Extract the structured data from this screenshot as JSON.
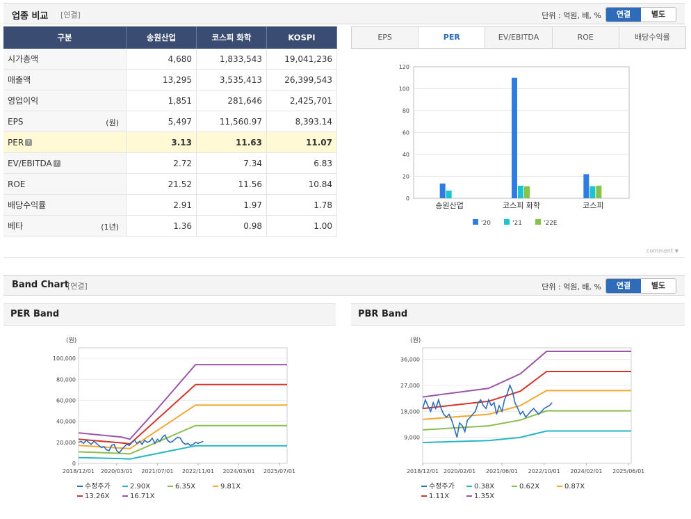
{
  "section1": {
    "title": "업종 비교",
    "subtitle": "[연결]",
    "unit": "단위 : 억원, 배, %",
    "toggle": {
      "on": "연결",
      "off": "별도"
    }
  },
  "table": {
    "headers": [
      "구분",
      "송원산업",
      "코스피 화학",
      "KOSPI"
    ],
    "rows": [
      {
        "label": "시가총액",
        "note": "",
        "values": [
          "4,680",
          "1,833,543",
          "19,041,236"
        ]
      },
      {
        "label": "매출액",
        "note": "",
        "values": [
          "13,295",
          "3,535,413",
          "26,399,543"
        ]
      },
      {
        "label": "영업이익",
        "note": "",
        "values": [
          "1,851",
          "281,646",
          "2,425,701"
        ]
      },
      {
        "label": "EPS",
        "note": "(원)",
        "values": [
          "5,497",
          "11,560.97",
          "8,393.14"
        ]
      },
      {
        "label": "PER",
        "note": "",
        "values": [
          "3.13",
          "11.63",
          "11.07"
        ]
      },
      {
        "label": "EV/EBITDA",
        "note": "",
        "values": [
          "2.72",
          "7.34",
          "6.83"
        ]
      },
      {
        "label": "ROE",
        "note": "",
        "values": [
          "21.52",
          "11.56",
          "10.84"
        ]
      },
      {
        "label": "배당수익률",
        "note": "",
        "values": [
          "2.91",
          "1.97",
          "1.78"
        ]
      },
      {
        "label": "베타",
        "note": "(1년)",
        "values": [
          "1.36",
          "0.98",
          "1.00"
        ]
      }
    ]
  },
  "tabs": [
    "EPS",
    "PER",
    "EV/EBITDA",
    "ROE",
    "배당수익률"
  ],
  "comment_label": "comment",
  "section2": {
    "title": "Band Chart",
    "subtitle": "[연결]",
    "unit": "단위 : 억원, 배, %",
    "toggle": {
      "on": "연결",
      "off": "별도"
    }
  },
  "chart_data": [
    {
      "type": "bar",
      "title": "PER",
      "categories": [
        "송원산업",
        "코스피 화학",
        "코스피"
      ],
      "series": [
        {
          "name": "'20",
          "color": "#2f7de1",
          "values": [
            13.5,
            110,
            22
          ]
        },
        {
          "name": "'21",
          "color": "#1fc3d0",
          "values": [
            7,
            11.5,
            11
          ]
        },
        {
          "name": "'22E",
          "color": "#86c349",
          "values": [
            null,
            11,
            11.5
          ]
        }
      ],
      "ylim": [
        0,
        120
      ],
      "yticks": [
        "0",
        "20",
        "40",
        "60",
        "80",
        "100",
        "120"
      ]
    },
    {
      "type": "line",
      "title": "PER Band",
      "ylabel": "(원)",
      "ylim": [
        0,
        110000
      ],
      "yticks": [
        {
          "v": 0,
          "t": "0"
        },
        {
          "v": 20000,
          "t": "20,000"
        },
        {
          "v": 40000,
          "t": "40,000"
        },
        {
          "v": 60000,
          "t": "60,000"
        },
        {
          "v": 80000,
          "t": "80,000"
        },
        {
          "v": 100000,
          "t": "100,000"
        }
      ],
      "xlim": [
        2018.917,
        2025.75
      ],
      "xticks": [
        {
          "v": 2018.917,
          "t": "2018/12/01"
        },
        {
          "v": 2020.167,
          "t": "2020/03/01"
        },
        {
          "v": 2021.5,
          "t": "2021/07/01"
        },
        {
          "v": 2022.833,
          "t": "2022/11/01"
        },
        {
          "v": 2024.167,
          "t": "2024/03/01"
        },
        {
          "v": 2025.5,
          "t": "2025/07/01"
        }
      ],
      "series": [
        {
          "name": "수정주가",
          "color": "#2e6bb8",
          "price": true,
          "x": [
            2018.92,
            2019.0,
            2019.08,
            2019.17,
            2019.25,
            2019.33,
            2019.42,
            2019.5,
            2019.58,
            2019.67,
            2019.75,
            2019.83,
            2019.92,
            2020.0,
            2020.08,
            2020.17,
            2020.25,
            2020.33,
            2020.42,
            2020.5,
            2020.58,
            2020.67,
            2020.75,
            2020.83,
            2020.92,
            2021.0,
            2021.08,
            2021.17,
            2021.25,
            2021.33,
            2021.42,
            2021.5,
            2021.58,
            2021.67,
            2021.75,
            2021.83,
            2021.92,
            2022.0,
            2022.08,
            2022.17,
            2022.25,
            2022.33,
            2022.42,
            2022.5,
            2022.58,
            2022.67,
            2022.75,
            2022.83,
            2022.92,
            2023.0
          ],
          "y": [
            20000,
            21000,
            19000,
            22000,
            20000,
            18000,
            21000,
            19000,
            17000,
            15000,
            16000,
            13000,
            12000,
            17000,
            18000,
            12000,
            10000,
            13000,
            16000,
            18000,
            17000,
            20000,
            22000,
            19000,
            21000,
            18000,
            22000,
            20000,
            21000,
            24000,
            19000,
            23000,
            21000,
            25000,
            27000,
            22000,
            20000,
            21000,
            23000,
            25000,
            24000,
            20000,
            18000,
            19000,
            17000,
            18000,
            20000,
            19000,
            20000,
            21000
          ]
        },
        {
          "name": "2.90X",
          "color": "#27b4c4",
          "x": [
            2018.92,
            2020.33,
            2020.6,
            2022.75,
            2025.75
          ],
          "y": [
            5500,
            4500,
            4200,
            16700,
            16700
          ]
        },
        {
          "name": "6.35X",
          "color": "#8bbd4b",
          "x": [
            2018.92,
            2020.33,
            2020.6,
            2022.75,
            2025.75
          ],
          "y": [
            11000,
            9500,
            9000,
            36000,
            36000
          ]
        },
        {
          "name": "9.81X",
          "color": "#f0a830",
          "x": [
            2018.92,
            2020.33,
            2020.6,
            2022.75,
            2025.75
          ],
          "y": [
            17000,
            14500,
            14000,
            55500,
            55500
          ]
        },
        {
          "name": "13.26X",
          "color": "#d2342a",
          "x": [
            2018.92,
            2020.33,
            2020.6,
            2022.75,
            2025.75
          ],
          "y": [
            23000,
            19500,
            18500,
            75000,
            75000
          ]
        },
        {
          "name": "16.71X",
          "color": "#9b54a8",
          "x": [
            2018.92,
            2020.33,
            2020.6,
            2021.5,
            2022.75,
            2025.75
          ],
          "y": [
            29000,
            25000,
            23000,
            52000,
            94000,
            94000
          ]
        }
      ]
    },
    {
      "type": "line",
      "title": "PBR Band",
      "ylabel": "(원)",
      "ylim": [
        0,
        40000
      ],
      "yticks": [
        {
          "v": 9000,
          "t": "9,000"
        },
        {
          "v": 18000,
          "t": "18,000"
        },
        {
          "v": 27000,
          "t": "27,000"
        },
        {
          "v": 36000,
          "t": "36,000"
        }
      ],
      "xlim": [
        2018.917,
        2025.5
      ],
      "xticks": [
        {
          "v": 2018.917,
          "t": "2018/12/01"
        },
        {
          "v": 2020.083,
          "t": "2020/02/01"
        },
        {
          "v": 2021.417,
          "t": "2021/06/01"
        },
        {
          "v": 2022.75,
          "t": "2022/10/01"
        },
        {
          "v": 2024.083,
          "t": "2024/02/01"
        },
        {
          "v": 2025.417,
          "t": "2025/06/01"
        }
      ],
      "series": [
        {
          "name": "수정주가",
          "color": "#2e6bb8",
          "price": true,
          "x": [
            2018.92,
            2019.0,
            2019.08,
            2019.17,
            2019.25,
            2019.33,
            2019.42,
            2019.5,
            2019.58,
            2019.67,
            2019.75,
            2019.83,
            2019.92,
            2020.0,
            2020.08,
            2020.17,
            2020.25,
            2020.33,
            2020.42,
            2020.5,
            2020.58,
            2020.67,
            2020.75,
            2020.83,
            2020.92,
            2021.0,
            2021.08,
            2021.17,
            2021.25,
            2021.33,
            2021.42,
            2021.5,
            2021.58,
            2021.67,
            2021.75,
            2021.83,
            2021.92,
            2022.0,
            2022.08,
            2022.17,
            2022.25,
            2022.33,
            2022.42,
            2022.5,
            2022.58,
            2022.67,
            2022.75,
            2022.83,
            2022.92,
            2023.0
          ],
          "y": [
            19000,
            22000,
            20000,
            18000,
            21000,
            19000,
            22000,
            19000,
            17000,
            16000,
            17000,
            15000,
            12000,
            9000,
            14000,
            13000,
            11000,
            15000,
            16000,
            17000,
            18000,
            21000,
            22000,
            20000,
            19000,
            22000,
            20000,
            21000,
            17000,
            20000,
            18000,
            22000,
            24000,
            27000,
            25000,
            21000,
            19000,
            17000,
            18000,
            16000,
            17000,
            18000,
            19000,
            18000,
            17000,
            18000,
            19000,
            19500,
            20000,
            21000
          ]
        },
        {
          "name": "0.38X",
          "color": "#27b4c4",
          "x": [
            2018.92,
            2021.0,
            2022.0,
            2022.83,
            2025.5
          ],
          "y": [
            7200,
            7900,
            9000,
            11200,
            11200
          ]
        },
        {
          "name": "0.62X",
          "color": "#8bbd4b",
          "x": [
            2018.92,
            2021.0,
            2022.0,
            2022.83,
            2025.5
          ],
          "y": [
            11600,
            13000,
            15000,
            18200,
            18200
          ]
        },
        {
          "name": "0.87X",
          "color": "#f0a830",
          "x": [
            2018.92,
            2021.0,
            2022.0,
            2022.83,
            2025.5
          ],
          "y": [
            15200,
            17000,
            20000,
            25200,
            25200
          ]
        },
        {
          "name": "1.11X",
          "color": "#d2342a",
          "x": [
            2018.92,
            2021.0,
            2022.0,
            2022.83,
            2025.5
          ],
          "y": [
            19000,
            21500,
            25000,
            31800,
            31800
          ]
        },
        {
          "name": "1.35X",
          "color": "#9b54a8",
          "x": [
            2018.92,
            2021.0,
            2022.0,
            2022.83,
            2025.5
          ],
          "y": [
            23000,
            26000,
            31000,
            38800,
            38800
          ]
        }
      ]
    }
  ]
}
